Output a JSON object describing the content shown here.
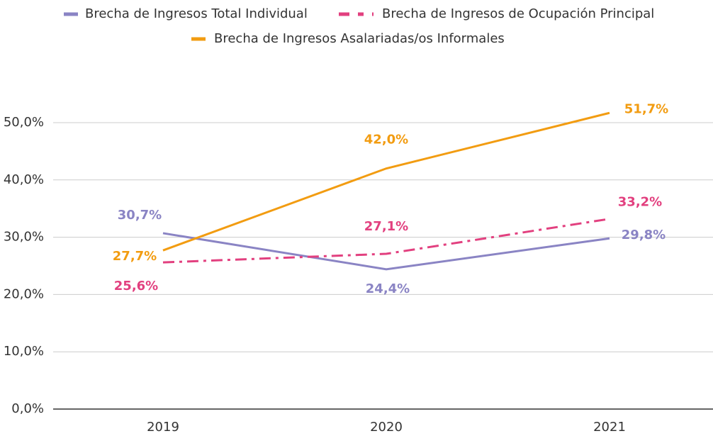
{
  "chart_data": {
    "type": "line",
    "categories": [
      "2019",
      "2020",
      "2021"
    ],
    "series": [
      {
        "name": "Brecha de Ingresos Total Individual",
        "color": "#8a84c4",
        "dash": "solid",
        "values": [
          30.7,
          24.4,
          29.8
        ],
        "value_labels": [
          "30,7%",
          "24,4%",
          "29,8%"
        ]
      },
      {
        "name": "Brecha de Ingresos de Ocupación Principal",
        "color": "#e2407f",
        "dash": "dashdot",
        "values": [
          25.6,
          27.1,
          33.2
        ],
        "value_labels": [
          "25,6%",
          "27,1%",
          "33,2%"
        ]
      },
      {
        "name": "Brecha de Ingresos Asalariadas/os Informales",
        "color": "#f29c11",
        "dash": "solid",
        "values": [
          27.7,
          42.0,
          51.7
        ],
        "value_labels": [
          "27,7%",
          "42,0%",
          "51,7%"
        ]
      }
    ],
    "ylim": [
      0,
      55
    ],
    "yticks": [
      {
        "value": 0,
        "label": "0,0%"
      },
      {
        "value": 10,
        "label": "10,0%"
      },
      {
        "value": 20,
        "label": "20,0%"
      },
      {
        "value": 30,
        "label": "30,0%"
      },
      {
        "value": 40,
        "label": "40,0%"
      },
      {
        "value": 50,
        "label": "50,0%"
      }
    ],
    "grid": true,
    "legend": "top"
  }
}
